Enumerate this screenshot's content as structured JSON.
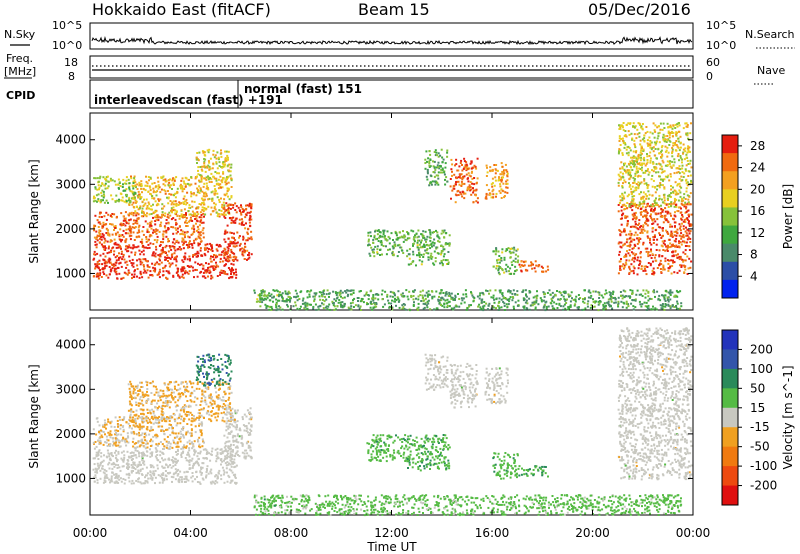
{
  "header": {
    "station": "Hokkaido East (fitACF)",
    "beam": "Beam 15",
    "date": "05/Dec/2016"
  },
  "noise_panel": {
    "left_label": "N.Sky",
    "right_label": "N.Search",
    "top_tick": "10^5",
    "bottom_tick": "10^0"
  },
  "freq_panel": {
    "left_label_1": "Freq.",
    "left_label_2": "[MHz]",
    "right_label": "Nave",
    "left_ticks": [
      "18",
      "8"
    ],
    "right_ticks": [
      "60",
      "0"
    ]
  },
  "cpid_panel": {
    "label": "CPID",
    "entries": [
      "interleavedscan (fast) +191",
      "normal (fast) 151"
    ]
  },
  "colors": {
    "power_scale": [
      "#0022ee",
      "#2c4ea6",
      "#4a8a6a",
      "#3fa83f",
      "#86c23a",
      "#e8d020",
      "#f3a020",
      "#f06a10",
      "#e51e10"
    ],
    "velocity_scale": [
      "#2233bb",
      "#3355aa",
      "#2a8a5a",
      "#55bb44",
      "#c8c8c0",
      "#f0a020",
      "#f07a10",
      "#ee4a10",
      "#e01010"
    ],
    "ground_scatter": "#c8c8c0"
  },
  "chart_data": [
    {
      "type": "heatmap",
      "name": "power",
      "xlabel": "",
      "ylabel": "Slant Range [km]",
      "x_ticks": [
        "00:00",
        "04:00",
        "08:00",
        "12:00",
        "16:00",
        "20:00",
        "00:00"
      ],
      "x_range_hours": [
        0,
        24
      ],
      "y_ticks": [
        1000,
        2000,
        3000,
        4000
      ],
      "y_range_km": [
        180,
        4600
      ],
      "colorbar_label": "Power [dB]",
      "colorbar_ticks": [
        4,
        8,
        12,
        16,
        20,
        24,
        28
      ],
      "colorbar_range": [
        0,
        30
      ],
      "regions": [
        {
          "t0": 0.1,
          "t1": 5.8,
          "r0": 900,
          "r1": 1700,
          "v": 28
        },
        {
          "t0": 0.1,
          "t1": 4.5,
          "r0": 1700,
          "r1": 2400,
          "v": 25
        },
        {
          "t0": 1.5,
          "t1": 5.6,
          "r0": 2300,
          "r1": 3200,
          "v": 20
        },
        {
          "t0": 5.3,
          "t1": 6.4,
          "r0": 1300,
          "r1": 2600,
          "v": 27
        },
        {
          "t0": 4.2,
          "t1": 5.6,
          "r0": 3100,
          "r1": 3800,
          "v": 18
        },
        {
          "t0": 0.1,
          "t1": 1.8,
          "r0": 2600,
          "r1": 3200,
          "v": 16
        },
        {
          "t0": 6.6,
          "t1": 7.6,
          "r0": 380,
          "r1": 560,
          "v": 14
        },
        {
          "t0": 11.0,
          "t1": 12.6,
          "r0": 1400,
          "r1": 2000,
          "v": 13
        },
        {
          "t0": 12.6,
          "t1": 14.3,
          "r0": 1200,
          "r1": 2000,
          "v": 13
        },
        {
          "t0": 14.3,
          "t1": 15.4,
          "r0": 2600,
          "r1": 3600,
          "v": 25
        },
        {
          "t0": 15.7,
          "t1": 16.6,
          "r0": 2700,
          "r1": 3500,
          "v": 22
        },
        {
          "t0": 13.3,
          "t1": 14.2,
          "r0": 3000,
          "r1": 3800,
          "v": 12
        },
        {
          "t0": 16.0,
          "t1": 17.0,
          "r0": 1000,
          "r1": 1600,
          "v": 13
        },
        {
          "t0": 17.0,
          "t1": 18.2,
          "r0": 1050,
          "r1": 1300,
          "v": 26
        },
        {
          "t0": 21.0,
          "t1": 23.9,
          "r0": 1000,
          "r1": 2600,
          "v": 26
        },
        {
          "t0": 21.0,
          "t1": 23.9,
          "r0": 2500,
          "r1": 4400,
          "v": 18
        },
        {
          "t0": 6.5,
          "t1": 23.5,
          "r0": 200,
          "r1": 650,
          "v": 11
        }
      ]
    },
    {
      "type": "heatmap",
      "name": "velocity",
      "xlabel": "Time UT",
      "ylabel": "Slant Range [km]",
      "x_ticks": [
        "00:00",
        "04:00",
        "08:00",
        "12:00",
        "16:00",
        "20:00",
        "00:00"
      ],
      "x_range_hours": [
        0,
        24
      ],
      "y_ticks": [
        1000,
        2000,
        3000,
        4000
      ],
      "y_range_km": [
        180,
        4600
      ],
      "colorbar_label": "Velocity [m s^-1]",
      "colorbar_ticks": [
        "200",
        "100",
        "50",
        "15",
        "-15",
        "-50",
        "-100",
        "-200"
      ],
      "colorbar_range": [
        -250,
        250
      ],
      "regions": [
        {
          "t0": 0.1,
          "t1": 5.8,
          "r0": 900,
          "r1": 1700,
          "v": 0
        },
        {
          "t0": 0.1,
          "t1": 4.5,
          "r0": 1700,
          "r1": 2400,
          "v": -30
        },
        {
          "t0": 1.5,
          "t1": 5.6,
          "r0": 2300,
          "r1": 3200,
          "v": -40
        },
        {
          "t0": 5.3,
          "t1": 6.4,
          "r0": 1300,
          "r1": 2600,
          "v": 0
        },
        {
          "t0": 4.2,
          "t1": 5.6,
          "r0": 3100,
          "r1": 3800,
          "v": 120
        },
        {
          "t0": 6.6,
          "t1": 7.6,
          "r0": 380,
          "r1": 560,
          "v": 60
        },
        {
          "t0": 11.0,
          "t1": 12.6,
          "r0": 1400,
          "r1": 2000,
          "v": 60
        },
        {
          "t0": 12.6,
          "t1": 14.3,
          "r0": 1200,
          "r1": 2000,
          "v": 70
        },
        {
          "t0": 14.3,
          "t1": 15.4,
          "r0": 2600,
          "r1": 3600,
          "v": 0
        },
        {
          "t0": 15.7,
          "t1": 16.6,
          "r0": 2700,
          "r1": 3500,
          "v": 0
        },
        {
          "t0": 13.3,
          "t1": 14.2,
          "r0": 3000,
          "r1": 3800,
          "v": 0
        },
        {
          "t0": 16.0,
          "t1": 17.0,
          "r0": 1000,
          "r1": 1600,
          "v": 60
        },
        {
          "t0": 17.0,
          "t1": 18.2,
          "r0": 1050,
          "r1": 1300,
          "v": 70
        },
        {
          "t0": 21.0,
          "t1": 23.9,
          "r0": 1000,
          "r1": 2600,
          "v": 0
        },
        {
          "t0": 21.0,
          "t1": 23.9,
          "r0": 2500,
          "r1": 4400,
          "v": 0
        },
        {
          "t0": 6.5,
          "t1": 23.5,
          "r0": 200,
          "r1": 650,
          "v": 50
        }
      ]
    }
  ]
}
